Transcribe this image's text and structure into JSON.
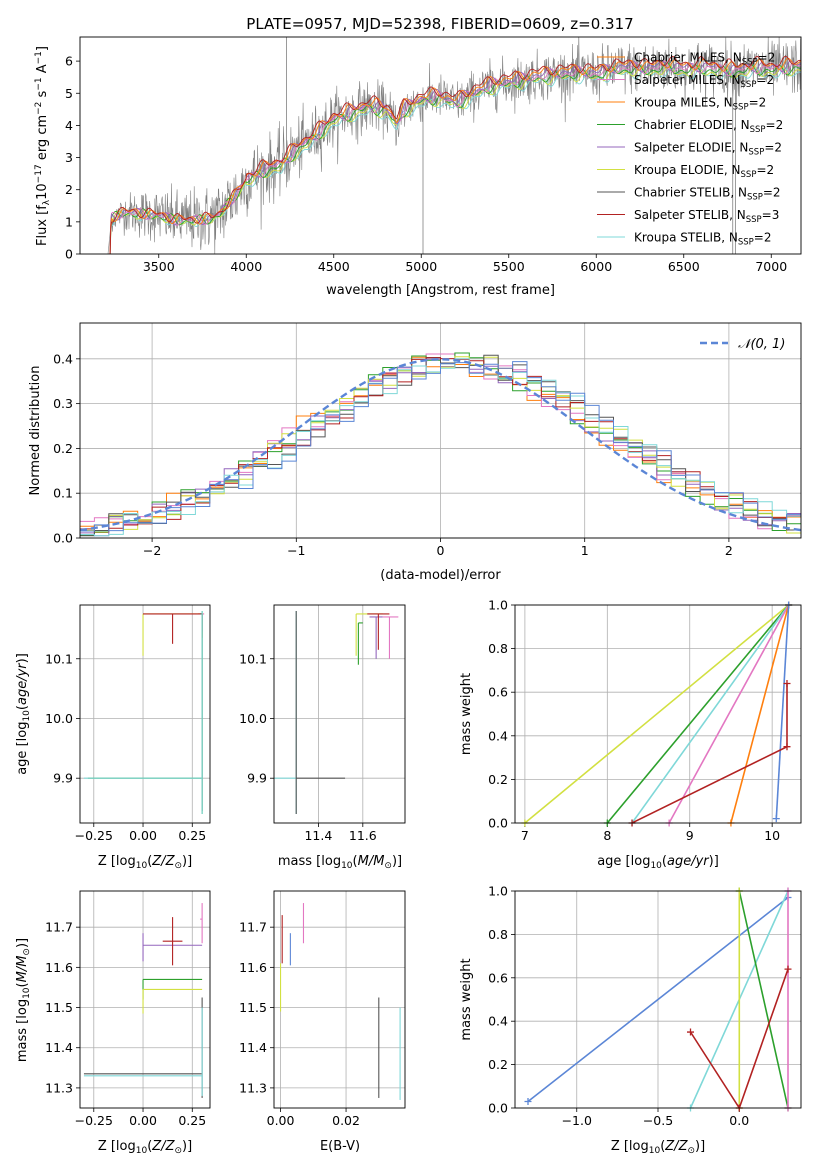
{
  "figure_title": "PLATE=0957, MJD=52398, FIBERID=0609, z=0.317",
  "colors": {
    "Chabrier MILES": "#ff7f0e",
    "Salpeter MILES": "#e377c2",
    "Kroupa MILES": "#ff7f0e",
    "Chabrier ELODIE": "#2ca02c",
    "Salpeter ELODIE": "#9467bd",
    "Kroupa ELODIE": "#d2e041",
    "Chabrier STELIB": "#555555",
    "Salpeter STELIB": "#b22222",
    "Kroupa STELIB": "#7fd8d8",
    "observed": "#808080",
    "gaussian": "#5b86d6"
  },
  "chart_data": [
    {
      "id": "spectrum",
      "type": "line",
      "title": "PLATE=0957, MJD=52398, FIBERID=0609, z=0.317",
      "xlabel": "wavelength [Angstrom, rest frame]",
      "ylabel": "Flux [f_λ 10^-17 erg cm^-2 s^-1 A^-1]",
      "xlim": [
        3050,
        7170
      ],
      "ylim": [
        0,
        6.75
      ],
      "xticks": [
        3500,
        4000,
        4500,
        5000,
        5500,
        6000,
        6500,
        7000
      ],
      "yticks": [
        0,
        1,
        2,
        3,
        4,
        5,
        6
      ],
      "legend_position": "top-right",
      "legend": [
        "Chabrier MILES, N_SSP=2",
        "Salpeter MILES, N_SSP=2",
        "Kroupa MILES, N_SSP=2",
        "Chabrier ELODIE, N_SSP=2",
        "Salpeter ELODIE, N_SSP=2",
        "Kroupa ELODIE, N_SSP=2",
        "Chabrier STELIB, N_SSP=2",
        "Salpeter STELIB, N_SSP=3",
        "Kroupa STELIB, N_SSP=2"
      ],
      "continuum": {
        "x": [
          3210,
          3230,
          3300,
          3400,
          3500,
          3600,
          3700,
          3800,
          3850,
          3900,
          3950,
          4000,
          4100,
          4200,
          4300,
          4400,
          4500,
          4600,
          4700,
          4800,
          4860,
          4900,
          5000,
          5100,
          5200,
          5300,
          5400,
          5500,
          5600,
          5700,
          5800,
          5900,
          6000,
          6100,
          6200,
          6300,
          6400,
          6500,
          6600,
          6700,
          6800,
          6900,
          7000,
          7100,
          7170
        ],
        "y": [
          0,
          1.1,
          1.3,
          1.25,
          1.2,
          1.05,
          1.05,
          1.1,
          1.25,
          1.6,
          1.9,
          2.3,
          2.6,
          2.8,
          3.3,
          3.7,
          4.2,
          4.4,
          4.6,
          4.5,
          4.05,
          4.5,
          4.8,
          4.9,
          4.7,
          5.0,
          5.25,
          5.35,
          5.45,
          5.55,
          5.6,
          5.65,
          5.6,
          5.75,
          5.8,
          5.75,
          5.85,
          5.75,
          5.8,
          5.75,
          5.7,
          5.8,
          5.75,
          5.8,
          5.85
        ]
      },
      "noise_amplitude": [
        [
          3050,
          0
        ],
        [
          3400,
          0.7
        ],
        [
          3900,
          1.0
        ],
        [
          4200,
          0.9
        ],
        [
          5000,
          0.6
        ],
        [
          6000,
          0.7
        ],
        [
          7170,
          0.8
        ]
      ],
      "spikes": [
        [
          4230,
          6.75
        ],
        [
          5010,
          0
        ],
        [
          6780,
          0
        ],
        [
          6795,
          0
        ]
      ]
    },
    {
      "id": "residuals",
      "type": "histogram",
      "xlabel": "(data-model)/error",
      "ylabel": "Normed distribution",
      "xlim": [
        -2.5,
        2.5
      ],
      "ylim": [
        0,
        0.48
      ],
      "xticks": [
        -2,
        -1,
        0,
        1,
        2
      ],
      "yticks": [
        0.0,
        0.1,
        0.2,
        0.3,
        0.4
      ],
      "legend_position": "top-right",
      "legend": [
        "N(0,1)"
      ],
      "bin_width": 0.1,
      "series_colors": [
        "#ff7f0e",
        "#e377c2",
        "#2ca02c",
        "#9467bd",
        "#d2e041",
        "#555555",
        "#b22222",
        "#7fd8d8",
        "#5b86d6"
      ]
    },
    {
      "id": "age_vs_Z",
      "type": "errorbar",
      "xlabel": "Z [log10(Z/Z_sun)]",
      "ylabel": "age [log10(age/yr)]",
      "xlim": [
        -0.32,
        0.34
      ],
      "ylim": [
        9.825,
        10.19
      ],
      "xticks": [
        -0.25,
        0.0,
        0.25
      ],
      "yticks": [
        9.9,
        10.0,
        10.1
      ],
      "points": [
        {
          "series": "Chabrier MILES",
          "x": 0.3,
          "y": 10.175,
          "xerr": [
            0.02,
            0.01
          ],
          "yerr": [
            0.04,
            0.0
          ]
        },
        {
          "series": "Salpeter MILES",
          "x": 0.3,
          "y": 10.175,
          "xerr": [
            0.02,
            0.01
          ],
          "yerr": [
            0.03,
            0.0
          ]
        },
        {
          "series": "Kroupa ELODIE",
          "x": 0.0,
          "y": 10.175,
          "xerr": [
            0.0,
            0.3
          ],
          "yerr": [
            0.07,
            0.0
          ]
        },
        {
          "series": "Salpeter STELIB",
          "x": 0.15,
          "y": 10.175,
          "xerr": [
            0.15,
            0.15
          ],
          "yerr": [
            0.05,
            0.0
          ]
        },
        {
          "series": "Chabrier STELIB",
          "x": 0.3,
          "y": 10.175,
          "xerr": [
            0.01,
            0.0
          ],
          "yerr": [
            0.33,
            0.0
          ]
        },
        {
          "series": "Chabrier ELODIE",
          "x": 0.3,
          "y": 9.9,
          "xerr": [
            0.58,
            0.0
          ],
          "yerr": [
            0.06,
            0.28
          ]
        },
        {
          "series": "Kroupa STELIB",
          "x": 0.3,
          "y": 9.9,
          "xerr": [
            0.6,
            0.0
          ],
          "yerr": [
            0.06,
            0.28
          ]
        }
      ]
    },
    {
      "id": "age_vs_mass",
      "type": "errorbar",
      "xlabel": "mass [log10(M/M_sun)]",
      "ylabel": "",
      "xlim": [
        11.2,
        11.79
      ],
      "ylim": [
        9.825,
        10.19
      ],
      "xticks": [
        11.4,
        11.6
      ],
      "yticks": [
        9.9,
        10.0,
        10.1
      ],
      "points": [
        {
          "series": "Kroupa ELODIE",
          "x": 11.57,
          "y": 10.175,
          "xerr": [
            0.0,
            0.12
          ],
          "yerr": [
            0.07,
            0.0
          ]
        },
        {
          "series": "Chabrier ELODIE",
          "x": 11.58,
          "y": 10.16,
          "xerr": [
            0.0,
            0.02
          ],
          "yerr": [
            0.07,
            0.0
          ]
        },
        {
          "series": "Salpeter ELODIE",
          "x": 11.66,
          "y": 10.17,
          "xerr": [
            0.03,
            0.03
          ],
          "yerr": [
            0.07,
            0.0
          ]
        },
        {
          "series": "Salpeter MILES",
          "x": 11.72,
          "y": 10.17,
          "xerr": [
            0.03,
            0.04
          ],
          "yerr": [
            0.07,
            0.0
          ]
        },
        {
          "series": "Salpeter STELIB",
          "x": 11.67,
          "y": 10.175,
          "xerr": [
            0.05,
            0.05
          ],
          "yerr": [
            0.06,
            0.0
          ]
        },
        {
          "series": "Kroupa STELIB",
          "x": 11.3,
          "y": 9.9,
          "xerr": [
            0.1,
            0.0
          ],
          "yerr": [
            0.06,
            0.28
          ]
        },
        {
          "series": "Chabrier STELIB",
          "x": 11.3,
          "y": 9.9,
          "xerr": [
            0.0,
            0.22
          ],
          "yerr": [
            0.06,
            0.28
          ]
        }
      ]
    },
    {
      "id": "weight_vs_age",
      "type": "line",
      "xlabel": "age [log10(age/yr)]",
      "ylabel": "mass weight",
      "xlim": [
        6.88,
        10.35
      ],
      "ylim": [
        0,
        1
      ],
      "xticks": [
        7,
        8,
        9,
        10
      ],
      "yticks": [
        0.0,
        0.2,
        0.4,
        0.6,
        0.8,
        1.0
      ],
      "series": [
        {
          "name": "Kroupa ELODIE",
          "x": [
            7.0,
            10.2
          ],
          "y": [
            0.0,
            1.0
          ]
        },
        {
          "name": "Chabrier ELODIE",
          "x": [
            8.0,
            10.2
          ],
          "y": [
            0.0,
            1.0
          ]
        },
        {
          "name": "Kroupa STELIB",
          "x": [
            8.3,
            10.2
          ],
          "y": [
            0.0,
            1.0
          ]
        },
        {
          "name": "Salpeter MILES",
          "x": [
            8.75,
            10.2
          ],
          "y": [
            0.0,
            1.0
          ]
        },
        {
          "name": "Chabrier MILES",
          "x": [
            9.5,
            10.2
          ],
          "y": [
            0.0,
            1.0
          ]
        },
        {
          "name": "Gaussian blue",
          "x": [
            10.05,
            10.2
          ],
          "y": [
            0.02,
            1.0
          ]
        },
        {
          "name": "Salpeter STELIB",
          "x": [
            8.3,
            10.18,
            10.18
          ],
          "y": [
            0.0,
            0.35,
            0.64
          ]
        }
      ]
    },
    {
      "id": "mass_vs_Z",
      "type": "errorbar",
      "xlabel": "Z [log10(Z/Z_sun)]",
      "ylabel": "mass [log10(M/M_sun)]",
      "xlim": [
        -0.32,
        0.34
      ],
      "ylim": [
        11.25,
        11.79
      ],
      "xticks": [
        -0.25,
        0.0,
        0.25
      ],
      "yticks": [
        11.3,
        11.4,
        11.5,
        11.6,
        11.7
      ],
      "points": [
        {
          "series": "Salpeter ELODIE",
          "x": 0.0,
          "y": 11.655,
          "xerr": [
            0.0,
            0.3
          ],
          "yerr": [
            0.04,
            0.03
          ]
        },
        {
          "series": "Salpeter STELIB",
          "x": 0.15,
          "y": 11.665,
          "xerr": [
            0.05,
            0.05
          ],
          "yerr": [
            0.06,
            0.06
          ]
        },
        {
          "series": "Salpeter MILES",
          "x": 0.3,
          "y": 11.72,
          "xerr": [
            0.01,
            0.0
          ],
          "yerr": [
            0.06,
            0.04
          ]
        },
        {
          "series": "Chabrier ELODIE",
          "x": 0.0,
          "y": 11.57,
          "xerr": [
            0.0,
            0.3
          ],
          "yerr": [
            0.05,
            0.0
          ]
        },
        {
          "series": "Kroupa ELODIE",
          "x": 0.0,
          "y": 11.545,
          "xerr": [
            0.0,
            0.3
          ],
          "yerr": [
            0.06,
            0.0
          ]
        },
        {
          "series": "Chabrier STELIB",
          "x": 0.3,
          "y": 11.335,
          "xerr": [
            0.6,
            0.0
          ],
          "yerr": [
            0.06,
            0.19
          ]
        },
        {
          "series": "Kroupa STELIB",
          "x": 0.3,
          "y": 11.33,
          "xerr": [
            0.6,
            0.0
          ],
          "yerr": [
            0.05,
            0.17
          ]
        }
      ]
    },
    {
      "id": "mass_vs_EBV",
      "type": "errorbar",
      "xlabel": "E(B-V)",
      "ylabel": "",
      "xlim": [
        -0.002,
        0.038
      ],
      "ylim": [
        11.25,
        11.79
      ],
      "xticks": [
        0.0,
        0.02
      ],
      "yticks": [
        11.3,
        11.4,
        11.5,
        11.6,
        11.7
      ],
      "points": [
        {
          "series": "Salpeter STELIB",
          "x": 0.0005,
          "y": 11.67,
          "yerr": [
            0.06,
            0.06
          ]
        },
        {
          "series": "Salpeter MILES",
          "x": 0.007,
          "y": 11.7,
          "yerr": [
            0.04,
            0.06
          ]
        },
        {
          "series": "Gaussian blue",
          "x": 0.003,
          "y": 11.645,
          "yerr": [
            0.04,
            0.04
          ]
        },
        {
          "series": "Kroupa ELODIE",
          "x": 0.0,
          "y": 11.55,
          "yerr": [
            0.06,
            0.06
          ]
        },
        {
          "series": "Chabrier STELIB",
          "x": 0.03,
          "y": 11.335,
          "yerr": [
            0.06,
            0.19
          ]
        },
        {
          "series": "Kroupa STELIB",
          "x": 0.0365,
          "y": 11.33,
          "yerr": [
            0.06,
            0.17
          ]
        }
      ]
    },
    {
      "id": "weight_vs_Z",
      "type": "line",
      "xlabel": "Z [log10(Z/Z_sun)]",
      "ylabel": "mass weight",
      "xlim": [
        -1.38,
        0.38
      ],
      "ylim": [
        0,
        1
      ],
      "xticks": [
        -1.0,
        -0.5,
        0.0
      ],
      "yticks": [
        0.0,
        0.2,
        0.4,
        0.6,
        0.8,
        1.0
      ],
      "series": [
        {
          "name": "Gaussian blue",
          "x": [
            -1.3,
            0.3
          ],
          "y": [
            0.03,
            0.97
          ]
        },
        {
          "name": "Kroupa STELIB",
          "x": [
            -0.3,
            0.3
          ],
          "y": [
            0.0,
            1.0
          ]
        },
        {
          "name": "Chabrier ELODIE",
          "x": [
            0.0,
            0.3
          ],
          "y": [
            1.0,
            0.0
          ]
        },
        {
          "name": "Kroupa ELODIE",
          "x": [
            0.0,
            0.0
          ],
          "y": [
            0.0,
            1.0
          ]
        },
        {
          "name": "Salpeter MILES",
          "x": [
            0.3,
            0.3
          ],
          "y": [
            0.0,
            1.0
          ]
        },
        {
          "name": "Salpeter STELIB",
          "x": [
            -0.3,
            0.0,
            0.3
          ],
          "y": [
            0.35,
            0.0,
            0.64
          ]
        }
      ]
    }
  ]
}
